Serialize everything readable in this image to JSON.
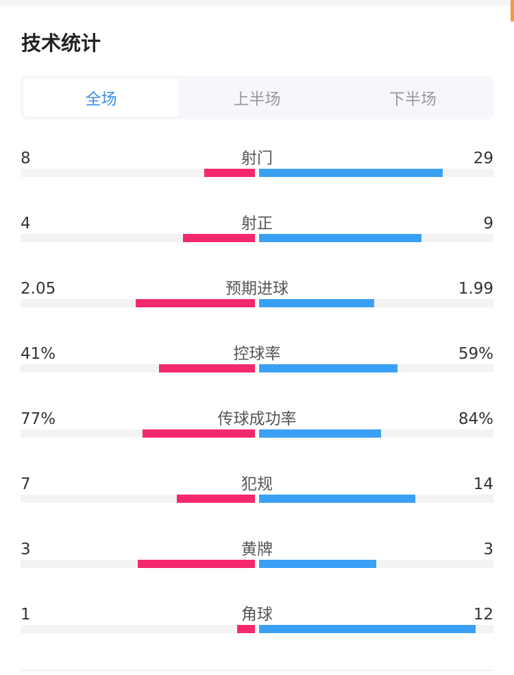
{
  "title": "技术统计",
  "tabs": [
    {
      "label": "全场",
      "active": true
    },
    {
      "label": "上半场",
      "active": false
    },
    {
      "label": "下半场",
      "active": false
    }
  ],
  "colors": {
    "home": "#f5286c",
    "away": "#3aa0f5",
    "active_tab": "#3a8ee6"
  },
  "stats": [
    {
      "label": "射门",
      "home": "8",
      "away": "29",
      "home_num": 8,
      "away_num": 29
    },
    {
      "label": "射正",
      "home": "4",
      "away": "9",
      "home_num": 4,
      "away_num": 9
    },
    {
      "label": "预期进球",
      "home": "2.05",
      "away": "1.99",
      "home_num": 2.05,
      "away_num": 1.99
    },
    {
      "label": "控球率",
      "home": "41%",
      "away": "59%",
      "home_num": 41,
      "away_num": 59
    },
    {
      "label": "传球成功率",
      "home": "77%",
      "away": "84%",
      "home_num": 77,
      "away_num": 84
    },
    {
      "label": "犯规",
      "home": "7",
      "away": "14",
      "home_num": 7,
      "away_num": 14
    },
    {
      "label": "黄牌",
      "home": "3",
      "away": "3",
      "home_num": 3,
      "away_num": 3
    },
    {
      "label": "角球",
      "home": "1",
      "away": "12",
      "home_num": 1,
      "away_num": 12
    }
  ]
}
